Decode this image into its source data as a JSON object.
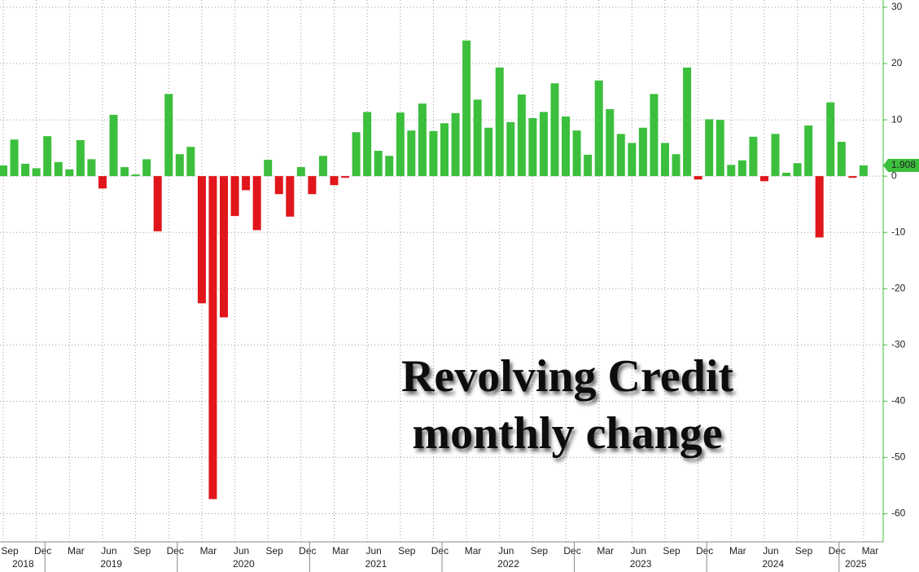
{
  "chart_data": {
    "type": "bar",
    "title": [
      "Revolving Credit",
      "monthly change"
    ],
    "categories": [
      "Sep",
      null,
      null,
      "Dec",
      null,
      null,
      "Mar",
      null,
      null,
      "Jun",
      null,
      null,
      "Sep",
      null,
      null,
      "Dec",
      null,
      null,
      "Mar",
      null,
      null,
      "Jun",
      null,
      null,
      "Sep",
      null,
      null,
      "Dec",
      null,
      null,
      "Mar",
      null,
      null,
      "Jun",
      null,
      null,
      "Sep",
      null,
      null,
      "Dec",
      null,
      null,
      "Mar",
      null,
      null,
      "Jun",
      null,
      null,
      "Sep",
      null,
      null,
      "Dec",
      null,
      null,
      "Mar",
      null,
      null,
      "Jun",
      null,
      null,
      "Sep",
      null,
      null,
      "Dec",
      null,
      null,
      "Mar",
      null,
      null,
      "Jun",
      null,
      null,
      "Sep",
      null,
      null,
      "Dec",
      null,
      null,
      "Mar"
    ],
    "years": [
      "2018",
      "2019",
      "2020",
      "2021",
      "2022",
      "2023",
      "2024",
      "2025"
    ],
    "values": [
      1.9,
      6.5,
      2.2,
      1.4,
      7.1,
      2.5,
      1.2,
      6.4,
      3.0,
      -2.2,
      10.9,
      1.6,
      0.3,
      3.0,
      -9.8,
      14.6,
      3.9,
      5.2,
      -22.6,
      -57.4,
      -25.1,
      -7.1,
      -2.5,
      -9.6,
      2.9,
      -3.2,
      -7.2,
      1.6,
      -3.2,
      3.6,
      -1.6,
      -0.3,
      7.8,
      11.4,
      4.5,
      3.6,
      11.3,
      8.1,
      12.9,
      8.0,
      9.4,
      11.2,
      24.1,
      13.6,
      8.6,
      19.3,
      9.6,
      14.5,
      10.3,
      11.4,
      16.5,
      10.6,
      8.1,
      3.8,
      17.0,
      11.9,
      7.5,
      5.9,
      8.6,
      14.6,
      5.9,
      3.9,
      19.3,
      -0.6,
      10.1,
      10.0,
      2.0,
      2.8,
      7.0,
      -0.9,
      7.5,
      0.6,
      2.3,
      9.0,
      -10.9,
      13.1,
      6.1,
      -0.3,
      1.908
    ],
    "color": "#3cbf3c",
    "negative_color": "#e0161b",
    "ylim": [
      -65,
      31.3
    ],
    "yticks": [
      30,
      20,
      10,
      0,
      -10,
      -20,
      -30,
      -40,
      -50,
      -60
    ],
    "grid": true
  }
}
